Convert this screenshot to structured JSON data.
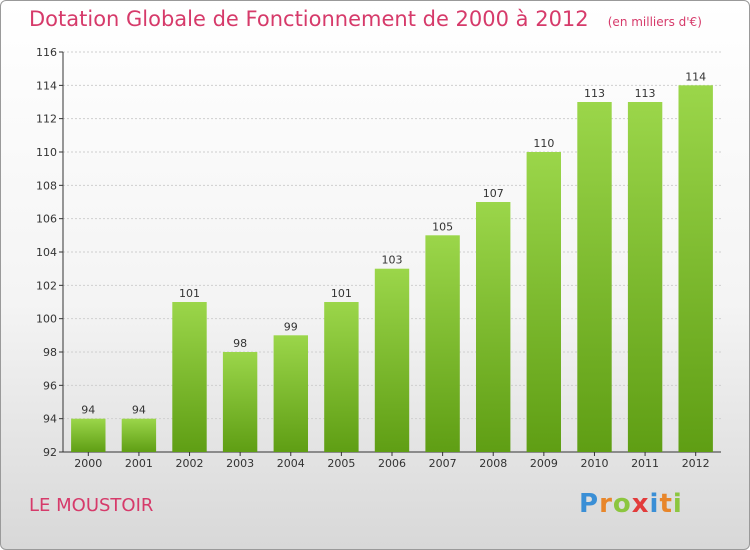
{
  "header": {
    "title": "Dotation Globale de Fonctionnement de 2000 à 2012",
    "subtitle": "(en milliers d'€)"
  },
  "footer": {
    "place": "LE MOUSTOIR",
    "logo": "Proxiti",
    "logo_letters": [
      {
        "ch": "P",
        "color": "#3a8fd6"
      },
      {
        "ch": "r",
        "color": "#e8862a"
      },
      {
        "ch": "o",
        "color": "#8cc63f"
      },
      {
        "ch": "x",
        "color": "#e23b3b"
      },
      {
        "ch": "i",
        "color": "#3a8fd6"
      },
      {
        "ch": "t",
        "color": "#e8862a"
      },
      {
        "ch": "i",
        "color": "#8cc63f"
      }
    ]
  },
  "colors": {
    "bar_top": "#9bd64a",
    "bar_bottom": "#5f9e14",
    "axis": "#333333",
    "grid": "#cfcfcf",
    "title": "#d63a6a"
  },
  "chart_data": {
    "type": "bar",
    "title": "Dotation Globale de Fonctionnement de 2000 à 2012",
    "subtitle": "(en milliers d'€)",
    "xlabel": "",
    "ylabel": "",
    "categories": [
      "2000",
      "2001",
      "2002",
      "2003",
      "2004",
      "2005",
      "2006",
      "2007",
      "2008",
      "2009",
      "2010",
      "2011",
      "2012"
    ],
    "values": [
      94,
      94,
      101,
      98,
      99,
      101,
      103,
      105,
      107,
      110,
      113,
      113,
      114
    ],
    "ylim": [
      92,
      116
    ],
    "yticks": [
      92,
      94,
      96,
      98,
      100,
      102,
      104,
      106,
      108,
      110,
      112,
      114,
      116
    ],
    "grid": true,
    "data_labels": true
  }
}
